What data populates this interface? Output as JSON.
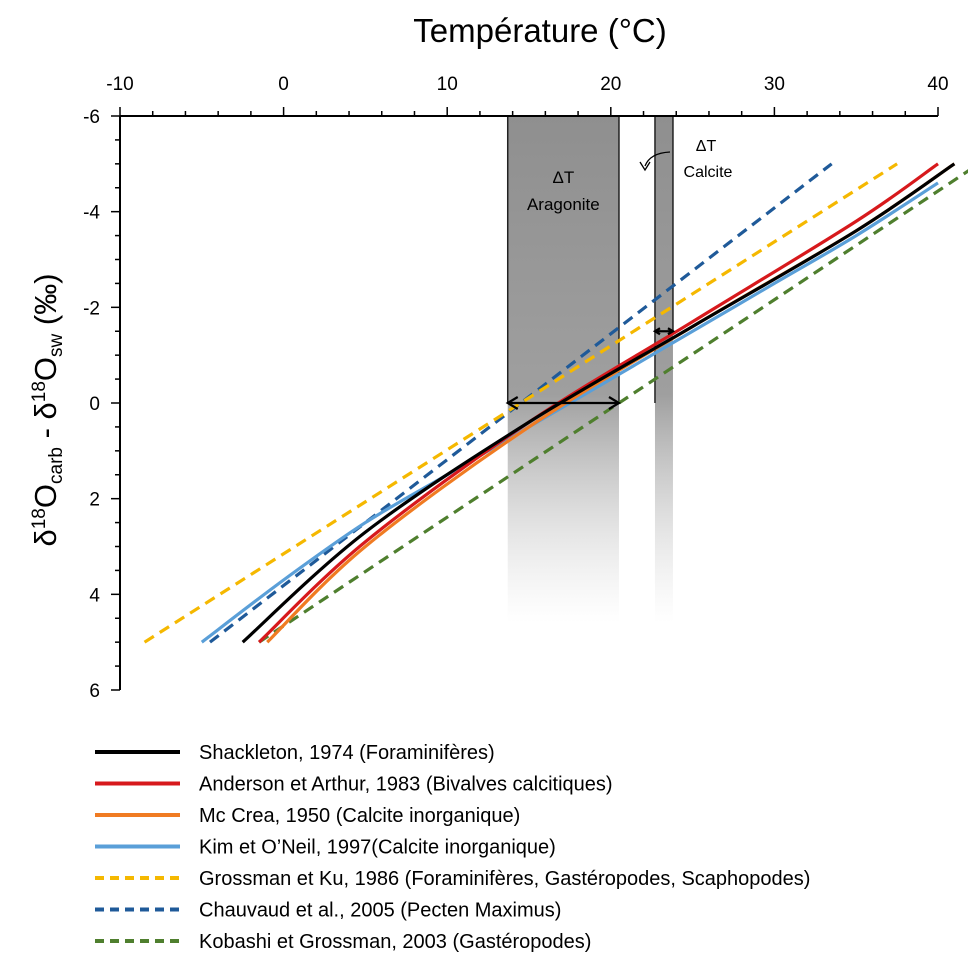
{
  "chart_data": {
    "type": "line",
    "title": "",
    "xlabel": "Température (°C)",
    "ylabel": {
      "parts": [
        "δ",
        "18",
        "O",
        "carb",
        " - δ",
        "18",
        "O",
        "sw",
        " (‰)"
      ]
    },
    "xlim": [
      -10,
      40
    ],
    "ylim": [
      -6,
      6
    ],
    "y_inverted": true,
    "x_axis_position": "top",
    "grid": false,
    "legend_position": "bottom",
    "x_ticks": [
      "-10",
      "0",
      "10",
      "20",
      "30",
      "40"
    ],
    "y_ticks": [
      "-6",
      "-4",
      "-2",
      "0",
      "2",
      "4",
      "6"
    ],
    "x_tick_values": [
      -10,
      0,
      10,
      20,
      30,
      40
    ],
    "y_tick_values": [
      -6,
      -4,
      -2,
      0,
      2,
      4,
      6
    ],
    "series": [
      {
        "name": "Shackleton, 1974 (Foraminifères)",
        "color": "#000000",
        "style": "solid",
        "x": [
          -2.5,
          5,
          15,
          25,
          35,
          41
        ],
        "y": [
          5.0,
          2.7,
          0.4,
          -1.6,
          -3.6,
          -5.0
        ]
      },
      {
        "name": "Anderson et Arthur, 1983 (Bivalves calcitiques)",
        "color": "#d7191c",
        "style": "solid",
        "x": [
          -1.5,
          5,
          15,
          25,
          35,
          40
        ],
        "y": [
          5.0,
          2.9,
          0.4,
          -1.7,
          -3.8,
          -5.0
        ]
      },
      {
        "name": "Mc Crea, 1950 (Calcite inorganique)",
        "color": "#f07b22",
        "style": "solid",
        "x": [
          -1.0,
          5,
          15,
          25,
          35,
          41
        ],
        "y": [
          5.0,
          3.0,
          0.5,
          -1.6,
          -3.6,
          -5.0
        ]
      },
      {
        "name": "Kim et O’Neil, 1997(Calcite inorganique)",
        "color": "#5a9fd8",
        "style": "solid",
        "x": [
          -5,
          0,
          5,
          10,
          15,
          20,
          25,
          30,
          35,
          40
        ],
        "y": [
          5.0,
          3.7,
          2.5,
          1.5,
          0.5,
          -0.5,
          -1.5,
          -2.5,
          -3.5,
          -4.6
        ]
      },
      {
        "name": "Grossman et Ku, 1986 (Foraminifères, Gastéropodes, Scaphopodes)",
        "color": "#f5b800",
        "style": "dashed",
        "x": [
          -8.5,
          37.5
        ],
        "y": [
          5.0,
          -5.0
        ]
      },
      {
        "name": "Chauvaud et al., 2005 (Pecten Maximus)",
        "color": "#1f5a99",
        "style": "dashed",
        "x": [
          -4.5,
          33.5
        ],
        "y": [
          5.0,
          -5.0
        ]
      },
      {
        "name": "Kobashi et Grossman, 2003 (Gastéropodes)",
        "color": "#4f7f2e",
        "style": "dashed",
        "x": [
          -1.5,
          42.5
        ],
        "y": [
          5.0,
          -5.0
        ]
      }
    ],
    "bands": [
      {
        "name": "aragonite",
        "x0": 13.7,
        "x1": 20.5,
        "label_top": "ΔT",
        "label_bottom": "Aragonite"
      },
      {
        "name": "calcite",
        "x0": 22.7,
        "x1": 23.8,
        "label_top": "ΔT",
        "label_bottom": "Calcite"
      }
    ],
    "arrows": [
      {
        "name": "aragonite-arrow",
        "x0": 13.7,
        "x1": 20.5,
        "y": 0
      },
      {
        "name": "calcite-arrow",
        "x0": 22.7,
        "x1": 23.8,
        "y": -1.5
      }
    ]
  }
}
